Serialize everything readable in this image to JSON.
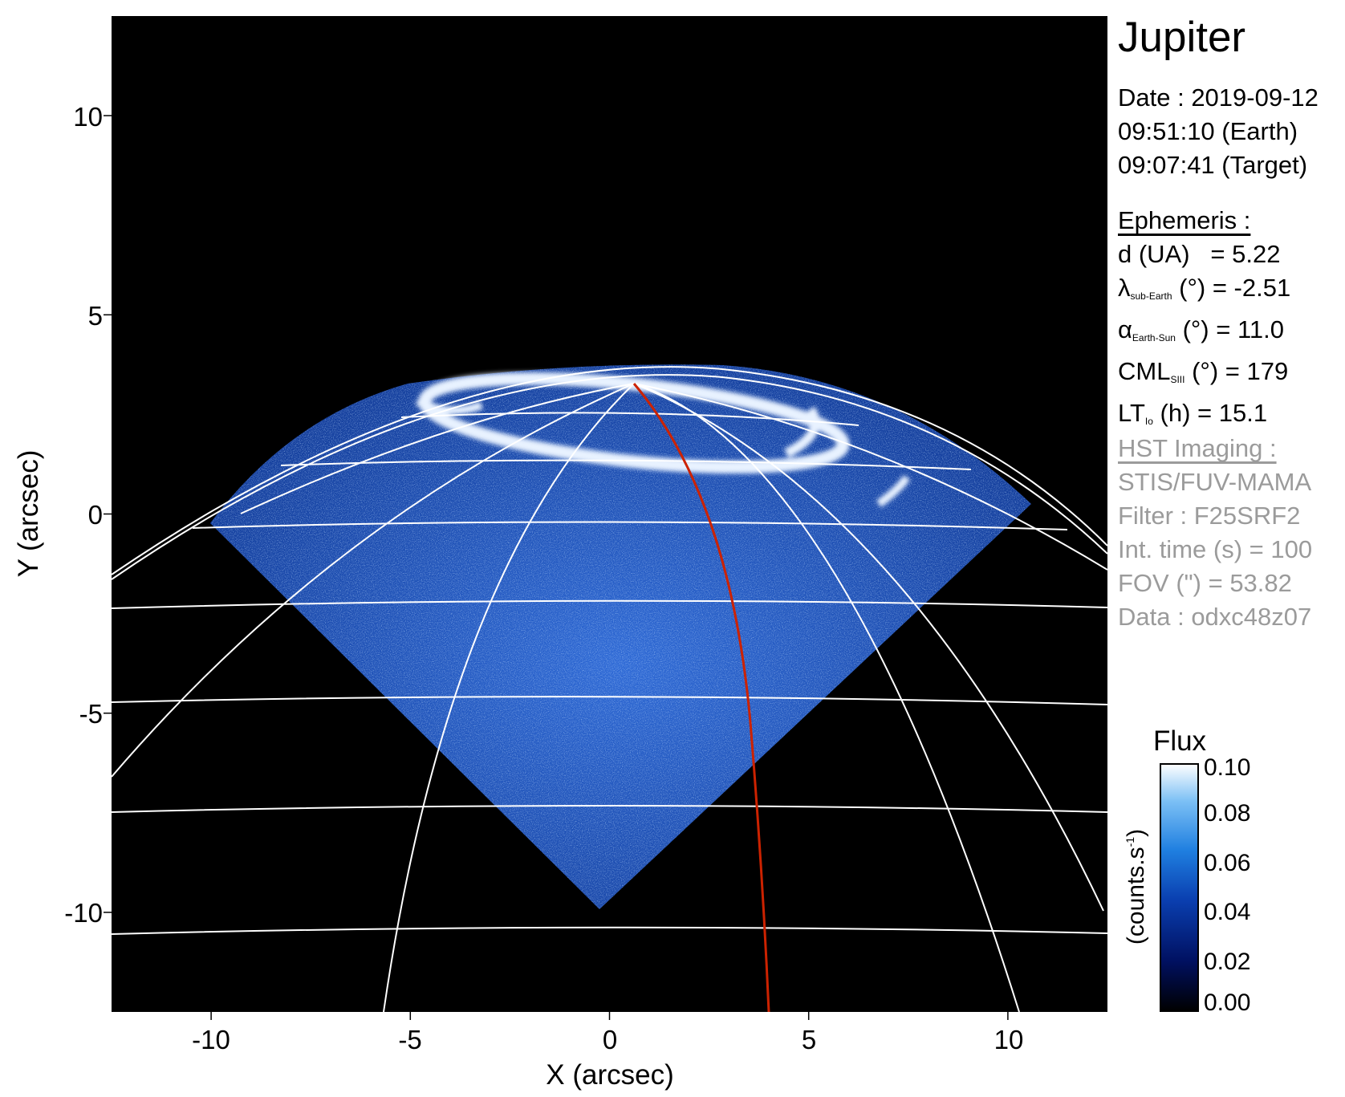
{
  "target_name": "Jupiter",
  "observation": {
    "date": "Date : 2019-09-12",
    "time_earth": "09:51:10 (Earth)",
    "time_target": "09:07:41 (Target)"
  },
  "ephemeris": {
    "header": "Ephemeris :",
    "d_ua": {
      "label": "d (UA)",
      "value": "= 5.22"
    },
    "lat_sub_earth": {
      "symbol": "λ",
      "sub": "sub-Earth",
      "unit": "(°)",
      "value": "= -2.51"
    },
    "alpha_earth_sun": {
      "symbol": "α",
      "sub": "Earth-Sun",
      "unit": "(°)",
      "value": "= 11.0"
    },
    "cml": {
      "symbol": "CML",
      "sub": "SIII",
      "unit": "(°)",
      "value": "= 179"
    },
    "lt_io": {
      "symbol": "LT",
      "sub": "Io",
      "unit": "(h)",
      "value": "= 15.1"
    }
  },
  "imaging": {
    "header": "HST Imaging :",
    "instrument": "STIS/FUV-MAMA",
    "filter": "Filter : F25SRF2",
    "int_time": "Int. time (s) = 100",
    "fov": "FOV (\") = 53.82",
    "data_id": "Data : odxc48z07"
  },
  "axes": {
    "xlabel": "X (arcsec)",
    "ylabel": "Y (arcsec)",
    "xlim": [
      -12.5,
      12.5
    ],
    "ylim": [
      -12.5,
      12.5
    ],
    "xticks": [
      "-10",
      "-5",
      "0",
      "5",
      "10"
    ],
    "yticks": [
      "10",
      "5",
      "0",
      "-5",
      "-10"
    ]
  },
  "colorbar": {
    "title": "Flux",
    "label": "(counts.s-1)",
    "ticks": [
      "0.00",
      "0.02",
      "0.04",
      "0.06",
      "0.08",
      "0.10"
    ],
    "range": [
      0,
      0.1
    ],
    "colors": [
      "#000000",
      "#001060",
      "#0a3fb0",
      "#1f7fe0",
      "#7cc0f5",
      "#ffffff"
    ]
  },
  "colors": {
    "background": "#000000",
    "grid": "#ffffff",
    "cml_meridian": "#cc2200",
    "emission": "#1a55c0",
    "aurora": "#e8f2ff"
  }
}
